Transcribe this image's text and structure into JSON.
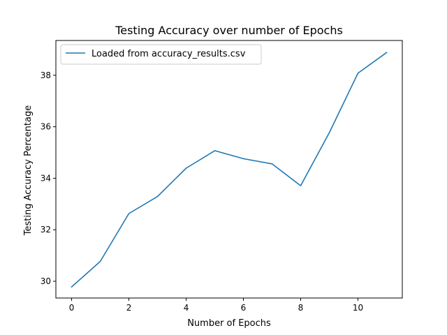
{
  "chart_data": {
    "type": "line",
    "title": "Testing Accuracy over number of Epochs",
    "xlabel": "Number of Epochs",
    "ylabel": "Testing Accuracy Percentage",
    "xlim": [
      -0.55,
      11.55
    ],
    "ylim": [
      29.35,
      39.35
    ],
    "xticks": [
      0,
      2,
      4,
      6,
      8,
      10
    ],
    "yticks": [
      30,
      32,
      34,
      36,
      38
    ],
    "grid": false,
    "legend": {
      "position": "top-left"
    },
    "series": [
      {
        "name": "Loaded from accuracy_results.csv",
        "color": "#1f77b4",
        "x": [
          0,
          1,
          2,
          3,
          4,
          5,
          6,
          7,
          8,
          9,
          10,
          11
        ],
        "y": [
          29.78,
          30.77,
          32.63,
          33.29,
          34.39,
          35.07,
          34.76,
          34.56,
          33.71,
          35.77,
          38.08,
          38.88
        ]
      }
    ]
  }
}
